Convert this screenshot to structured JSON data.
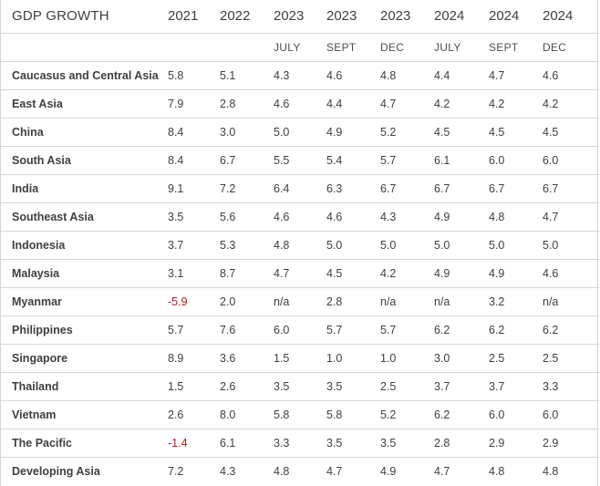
{
  "chart_data": {
    "type": "table",
    "title": "GDP GROWTH",
    "columns": [
      {
        "year": "2021",
        "month": ""
      },
      {
        "year": "2022",
        "month": ""
      },
      {
        "year": "2023",
        "month": "JULY"
      },
      {
        "year": "2023",
        "month": "SEPT"
      },
      {
        "year": "2023",
        "month": "DEC"
      },
      {
        "year": "2024",
        "month": "JULY"
      },
      {
        "year": "2024",
        "month": "SEPT"
      },
      {
        "year": "2024",
        "month": "DEC"
      }
    ],
    "rows": [
      {
        "label": "Caucasus and Central Asia",
        "values": [
          "5.8",
          "5.1",
          "4.3",
          "4.6",
          "4.8",
          "4.4",
          "4.7",
          "4.6"
        ]
      },
      {
        "label": "East Asia",
        "values": [
          "7.9",
          "2.8",
          "4.6",
          "4.4",
          "4.7",
          "4.2",
          "4.2",
          "4.2"
        ]
      },
      {
        "label": "China",
        "values": [
          "8.4",
          "3.0",
          "5.0",
          "4.9",
          "5.2",
          "4.5",
          "4.5",
          "4.5"
        ]
      },
      {
        "label": "South Asia",
        "values": [
          "8.4",
          "6.7",
          "5.5",
          "5.4",
          "5.7",
          "6.1",
          "6.0",
          "6.0"
        ]
      },
      {
        "label": "India",
        "values": [
          "9.1",
          "7.2",
          "6.4",
          "6.3",
          "6.7",
          "6.7",
          "6.7",
          "6.7"
        ]
      },
      {
        "label": "Southeast Asia",
        "values": [
          "3.5",
          "5.6",
          "4.6",
          "4.6",
          "4.3",
          "4.9",
          "4.8",
          "4.7"
        ]
      },
      {
        "label": "Indonesia",
        "values": [
          "3.7",
          "5.3",
          "4.8",
          "5.0",
          "5.0",
          "5.0",
          "5.0",
          "5.0"
        ]
      },
      {
        "label": "Malaysia",
        "values": [
          "3.1",
          "8.7",
          "4.7",
          "4.5",
          "4.2",
          "4.9",
          "4.9",
          "4.6"
        ]
      },
      {
        "label": "Myanmar",
        "values": [
          "-5.9",
          "2.0",
          "n/a",
          "2.8",
          "n/a",
          "n/a",
          "3.2",
          "n/a"
        ]
      },
      {
        "label": "Philippines",
        "values": [
          "5.7",
          "7.6",
          "6.0",
          "5.7",
          "5.7",
          "6.2",
          "6.2",
          "6.2"
        ]
      },
      {
        "label": "Singapore",
        "values": [
          "8.9",
          "3.6",
          "1.5",
          "1.0",
          "1.0",
          "3.0",
          "2.5",
          "2.5"
        ]
      },
      {
        "label": "Thailand",
        "values": [
          "1.5",
          "2.6",
          "3.5",
          "3.5",
          "2.5",
          "3.7",
          "3.7",
          "3.3"
        ]
      },
      {
        "label": "Vietnam",
        "values": [
          "2.6",
          "8.0",
          "5.8",
          "5.8",
          "5.2",
          "6.2",
          "6.0",
          "6.0"
        ]
      },
      {
        "label": "The Pacific",
        "values": [
          "-1.4",
          "6.1",
          "3.3",
          "3.5",
          "3.5",
          "2.8",
          "2.9",
          "2.9"
        ]
      },
      {
        "label": "Developing Asia",
        "values": [
          "7.2",
          "4.3",
          "4.8",
          "4.7",
          "4.9",
          "4.7",
          "4.8",
          "4.8"
        ]
      }
    ],
    "negative_color": "#b01c1c",
    "text_color": "#404040",
    "grid_color": "#d6d6d6"
  }
}
